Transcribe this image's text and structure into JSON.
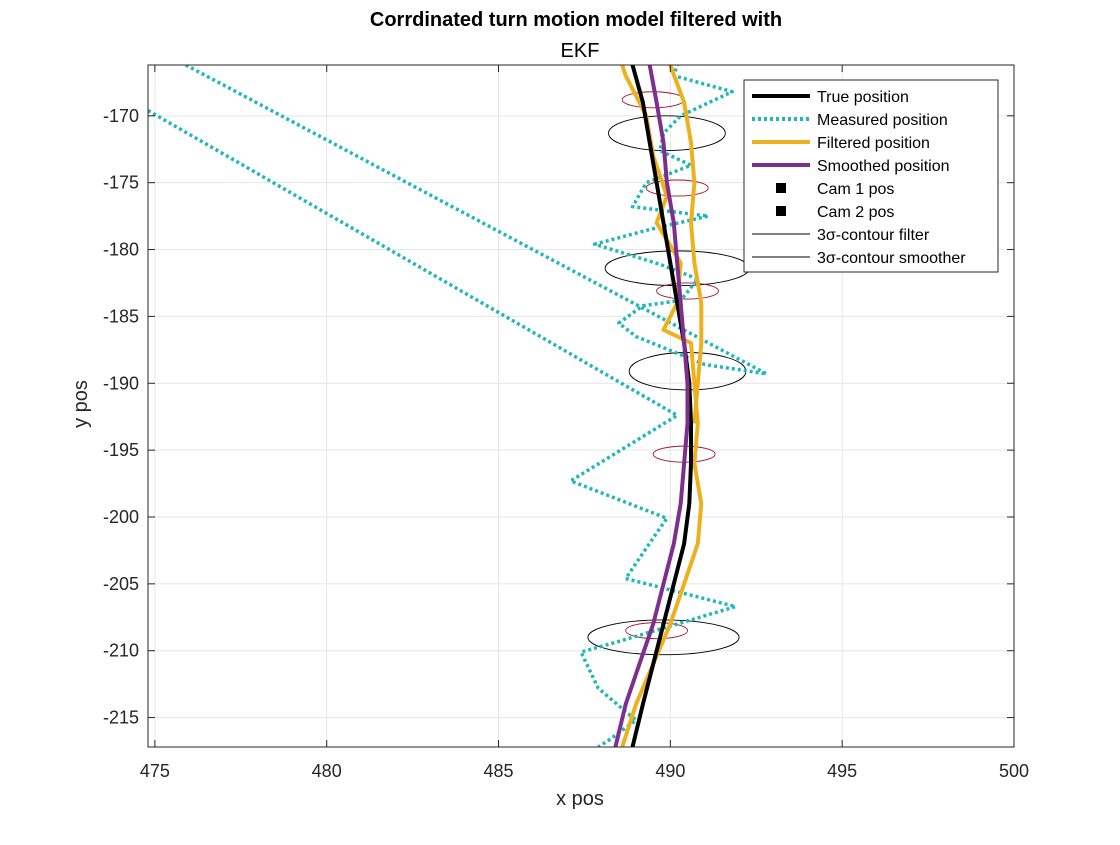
{
  "chart_data": {
    "type": "line",
    "title": "Corrdinated turn motion model filtered with",
    "subtitle": "EKF",
    "xlabel": "x pos",
    "ylabel": "y pos",
    "xlim": [
      474.8,
      500
    ],
    "ylim": [
      -217.2,
      -166.2
    ],
    "xticks": [
      475,
      480,
      485,
      490,
      495,
      500
    ],
    "yticks": [
      -170,
      -175,
      -180,
      -185,
      -190,
      -195,
      -200,
      -205,
      -210,
      -215
    ],
    "grid": true,
    "legend_position": "top-right",
    "series": [
      {
        "name": "True position",
        "color": "#000000",
        "style": "solid",
        "points": [
          [
            488.9,
            -217.2
          ],
          [
            489.2,
            -214
          ],
          [
            489.5,
            -211
          ],
          [
            489.8,
            -208
          ],
          [
            490.1,
            -205
          ],
          [
            490.4,
            -202
          ],
          [
            490.55,
            -199
          ],
          [
            490.6,
            -196
          ],
          [
            490.6,
            -193
          ],
          [
            490.55,
            -190
          ],
          [
            490.4,
            -187
          ],
          [
            490.2,
            -184
          ],
          [
            490.0,
            -181
          ],
          [
            489.8,
            -178
          ],
          [
            489.6,
            -175
          ],
          [
            489.4,
            -172
          ],
          [
            489.2,
            -169
          ],
          [
            488.9,
            -166.2
          ]
        ]
      },
      {
        "name": "Measured position",
        "color": "#1fb7b7",
        "style": "dotted",
        "points": [
          [
            474.8,
            -169.6
          ],
          [
            490.2,
            -192.4
          ],
          [
            487.1,
            -197.3
          ],
          [
            489.9,
            -200.1
          ],
          [
            489.6,
            -201.2
          ],
          [
            488.7,
            -204.6
          ],
          [
            491.9,
            -206.7
          ],
          [
            488.5,
            -209.3
          ],
          [
            487.4,
            -210.1
          ],
          [
            487.9,
            -212.8
          ],
          [
            489.0,
            -215.2
          ],
          [
            488.2,
            -216.7
          ],
          [
            487.9,
            -217.2
          ]
        ]
      },
      {
        "name": "Measured position",
        "color": "#1fb7b7",
        "style": "dotted",
        "points": [
          [
            475.9,
            -166.2
          ],
          [
            492.8,
            -189.3
          ],
          [
            491.0,
            -188.6
          ],
          [
            489.0,
            -186.5
          ],
          [
            488.5,
            -185.5
          ],
          [
            489.2,
            -184.2
          ],
          [
            490.3,
            -183.8
          ],
          [
            490.8,
            -182.2
          ],
          [
            489.7,
            -181.1
          ],
          [
            487.8,
            -179.6
          ],
          [
            489.4,
            -178.5
          ],
          [
            491.1,
            -177.5
          ],
          [
            488.9,
            -176.8
          ],
          [
            489.3,
            -175.0
          ],
          [
            490.6,
            -173.7
          ],
          [
            489.7,
            -172.6
          ],
          [
            489.8,
            -171.3
          ],
          [
            490.3,
            -170.0
          ],
          [
            491.8,
            -168.2
          ],
          [
            490.1,
            -167.0
          ],
          [
            490.2,
            -166.2
          ]
        ]
      },
      {
        "name": "Filtered position",
        "color": "#edb120",
        "style": "solid",
        "points": [
          [
            488.6,
            -217.2
          ],
          [
            489.0,
            -214
          ],
          [
            489.5,
            -211
          ],
          [
            490.0,
            -208
          ],
          [
            490.4,
            -205
          ],
          [
            490.8,
            -202
          ],
          [
            490.9,
            -199
          ],
          [
            490.7,
            -196
          ],
          [
            490.8,
            -193
          ],
          [
            490.7,
            -190
          ],
          [
            490.6,
            -187
          ],
          [
            489.8,
            -186
          ],
          [
            490.2,
            -184
          ],
          [
            490.3,
            -181
          ],
          [
            489.6,
            -178
          ],
          [
            489.9,
            -176
          ],
          [
            489.5,
            -173
          ],
          [
            489.3,
            -170
          ],
          [
            488.7,
            -167
          ],
          [
            488.6,
            -166.2
          ]
        ]
      },
      {
        "name": "Filtered position",
        "color": "#edb120",
        "style": "solid",
        "points": [
          [
            490.0,
            -166.2
          ],
          [
            490.4,
            -169
          ],
          [
            490.6,
            -172
          ],
          [
            490.7,
            -175
          ],
          [
            490.6,
            -178
          ],
          [
            490.7,
            -181
          ],
          [
            490.9,
            -184
          ],
          [
            490.9,
            -187
          ],
          [
            490.8,
            -190
          ],
          [
            490.7,
            -193
          ]
        ]
      },
      {
        "name": "Smoothed position",
        "color": "#7e2f8e",
        "style": "solid",
        "points": [
          [
            488.4,
            -217.2
          ],
          [
            488.7,
            -214
          ],
          [
            489.1,
            -211
          ],
          [
            489.5,
            -208
          ],
          [
            489.8,
            -205
          ],
          [
            490.1,
            -202
          ],
          [
            490.3,
            -199
          ],
          [
            490.4,
            -196
          ],
          [
            490.5,
            -193
          ],
          [
            490.5,
            -190
          ],
          [
            490.4,
            -187
          ],
          [
            490.3,
            -184
          ],
          [
            490.2,
            -181
          ],
          [
            490.1,
            -178
          ],
          [
            489.9,
            -175
          ],
          [
            489.8,
            -172
          ],
          [
            489.6,
            -169
          ],
          [
            489.4,
            -166.2
          ]
        ]
      }
    ],
    "cameras": [
      {
        "name": "Cam 1 pos",
        "marker": "square",
        "color": "#000000"
      },
      {
        "name": "Cam 2 pos",
        "marker": "square",
        "color": "#000000"
      }
    ],
    "contours": [
      {
        "legend": "3σ-contour filter",
        "color": "#000000",
        "ellipses": [
          [
            489.9,
            -171.3,
            1.7,
            1.3
          ],
          [
            490.2,
            -181.4,
            2.1,
            1.3
          ],
          [
            490.5,
            -189.1,
            1.7,
            1.4
          ],
          [
            489.8,
            -209.0,
            2.2,
            1.3
          ]
        ]
      },
      {
        "legend": "3σ-contour smoother",
        "color": "#a2142f",
        "ellipses": [
          [
            489.5,
            -168.8,
            0.9,
            0.6
          ],
          [
            490.2,
            -175.4,
            0.9,
            0.6
          ],
          [
            490.5,
            -183.1,
            0.9,
            0.6
          ],
          [
            490.4,
            -195.3,
            0.9,
            0.6
          ],
          [
            489.6,
            -208.5,
            0.9,
            0.6
          ]
        ]
      }
    ]
  },
  "legend": [
    {
      "label": "True position",
      "kind": "line",
      "color": "#000000",
      "dash": "",
      "width": 4
    },
    {
      "label": "Measured position",
      "kind": "line",
      "color": "#1fb7b7",
      "dash": "3 3",
      "width": 4
    },
    {
      "label": "Filtered position",
      "kind": "line",
      "color": "#edb120",
      "dash": "",
      "width": 4
    },
    {
      "label": "Smoothed position",
      "kind": "line",
      "color": "#7e2f8e",
      "dash": "",
      "width": 4
    },
    {
      "label": "Cam 1 pos",
      "kind": "marker",
      "color": "#000000"
    },
    {
      "label": "Cam 2 pos",
      "kind": "marker",
      "color": "#000000"
    },
    {
      "label": "3σ-contour filter",
      "kind": "line",
      "color": "#000000",
      "dash": "",
      "width": 1
    },
    {
      "label": "3σ-contour smoother",
      "kind": "line",
      "color": "#000000",
      "dash": "",
      "width": 1
    }
  ]
}
